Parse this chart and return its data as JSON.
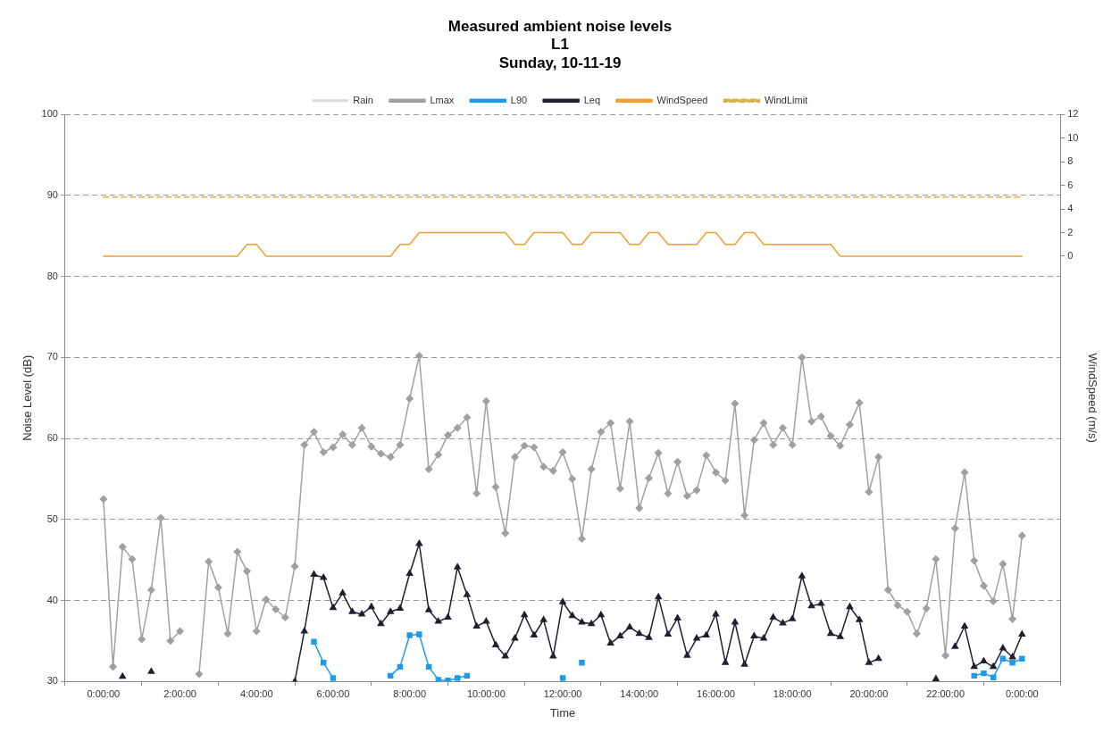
{
  "chart_data": {
    "type": "line",
    "title": "Measured ambient noise levels\nL1\nSunday, 10-11-19",
    "xlabel": "Time",
    "ylabel": "Noise Level (dB)",
    "y2label": "WindSpeed (m/s)",
    "x": [
      "--11-10T00:00",
      "--11-10T00:15",
      "--11-10T00:30",
      "--11-10T00:45",
      "--11-10T01:00",
      "--11-10T01:15",
      "--11-10T01:30",
      "--11-10T01:45",
      "--11-10T02:00",
      "--11-10T02:15",
      "--11-10T02:30",
      "--11-10T02:45",
      "--11-10T03:00",
      "--11-10T03:15",
      "--11-10T03:30",
      "--11-10T03:45",
      "--11-10T04:00",
      "--11-10T04:15",
      "--11-10T04:30",
      "--11-10T04:45",
      "--11-10T05:00",
      "--11-10T05:15",
      "--11-10T05:30",
      "--11-10T05:45",
      "--11-10T06:00",
      "--11-10T06:15",
      "--11-10T06:30",
      "--11-10T06:45",
      "--11-10T07:00",
      "--11-10T07:15",
      "--11-10T07:30",
      "--11-10T07:45",
      "--11-10T08:00",
      "--11-10T08:15",
      "--11-10T08:30",
      "--11-10T08:45",
      "--11-10T09:00",
      "--11-10T09:15",
      "--11-10T09:30",
      "--11-10T09:45",
      "--11-10T10:00",
      "--11-10T10:15",
      "--11-10T10:30",
      "--11-10T10:45",
      "--11-10T11:00",
      "--11-10T11:15",
      "--11-10T11:30",
      "--11-10T11:45",
      "--11-10T12:00",
      "--11-10T12:15",
      "--11-10T12:30",
      "--11-10T12:45",
      "--11-10T13:00",
      "--11-10T13:15",
      "--11-10T13:30",
      "--11-10T13:45",
      "--11-10T14:00",
      "--11-10T14:15",
      "--11-10T14:30",
      "--11-10T14:45",
      "--11-10T15:00",
      "--11-10T15:15",
      "--11-10T15:30",
      "--11-10T15:45",
      "--11-10T16:00",
      "--11-10T16:15",
      "--11-10T16:30",
      "--11-10T16:45",
      "--11-10T17:00",
      "--11-10T17:15",
      "--11-10T17:30",
      "--11-10T17:45",
      "--11-10T18:00",
      "--11-10T18:15",
      "--11-10T18:30",
      "--11-10T18:45",
      "--11-10T19:00",
      "--11-10T19:15",
      "--11-10T19:30",
      "--11-10T19:45",
      "--11-10T20:00",
      "--11-10T20:15",
      "--11-10T20:30",
      "--11-10T20:45",
      "--11-10T21:00",
      "--11-10T21:15",
      "--11-10T21:30",
      "--11-10T21:45",
      "--11-10T22:00",
      "--11-10T22:15",
      "--11-10T22:30",
      "--11-10T22:45",
      "--11-10T23:00",
      "--11-10T23:15",
      "--11-10T23:30",
      "--11-10T23:45",
      "--11-11T00:00"
    ],
    "xlim": [
      "--11-10T00:00",
      "--11-11T00:00"
    ],
    "xticks": [
      {
        "value": "--11-10T00:00",
        "label": "0:00:00"
      },
      {
        "value": "--11-10T02:00",
        "label": "2:00:00"
      },
      {
        "value": "--11-10T04:00",
        "label": "4:00:00"
      },
      {
        "value": "--11-10T06:00",
        "label": "6:00:00"
      },
      {
        "value": "--11-10T08:00",
        "label": "8:00:00"
      },
      {
        "value": "--11-10T10:00",
        "label": "10:00:00"
      },
      {
        "value": "--11-10T12:00",
        "label": "12:00:00"
      },
      {
        "value": "--11-10T14:00",
        "label": "14:00:00"
      },
      {
        "value": "--11-10T16:00",
        "label": "16:00:00"
      },
      {
        "value": "--11-10T18:00",
        "label": "18:00:00"
      },
      {
        "value": "--11-10T20:00",
        "label": "20:00:00"
      },
      {
        "value": "--11-10T22:00",
        "label": "22:00:00"
      },
      {
        "value": "--11-11T00:00",
        "label": "0:00:00"
      }
    ],
    "ylim": [
      30,
      100
    ],
    "yticks": [
      30,
      40,
      50,
      60,
      70,
      80,
      90,
      100
    ],
    "y2lim": [
      -36,
      12
    ],
    "y2ticks": [
      0,
      2,
      4,
      6,
      8,
      10,
      12
    ],
    "grid": "y",
    "legend": "top",
    "series": [
      {
        "name": "Rain",
        "type": "bar",
        "axis": "y2",
        "color": "#d9d9d9",
        "values": [
          null,
          null,
          null,
          null,
          null,
          null,
          null,
          null,
          null,
          null,
          null,
          null,
          null,
          null,
          null,
          null,
          null,
          null,
          null,
          null,
          null,
          null,
          null,
          null,
          null,
          null,
          null,
          null,
          null,
          null,
          null,
          null,
          null,
          null,
          null,
          null,
          null,
          null,
          null,
          null,
          null,
          null,
          null,
          null,
          null,
          null,
          null,
          null,
          null,
          null,
          null,
          null,
          null,
          null,
          null,
          null,
          null,
          null,
          null,
          null,
          null,
          null,
          null,
          null,
          null,
          null,
          null,
          null,
          null,
          null,
          null,
          null,
          null,
          null,
          null,
          null,
          null,
          null,
          null,
          null,
          null,
          null,
          null,
          null,
          null,
          null,
          null,
          null,
          null,
          null,
          null,
          null,
          null,
          null,
          null,
          null,
          null
        ]
      },
      {
        "name": "Lmax",
        "color": "#a0a0a0",
        "marker": "diamond",
        "values": [
          52.5,
          31.8,
          46.6,
          45.1,
          35.2,
          41.3,
          50.2,
          35.0,
          36.2,
          null,
          30.9,
          44.8,
          41.6,
          35.9,
          46.0,
          43.6,
          36.2,
          40.1,
          38.9,
          37.9,
          44.2,
          59.2,
          60.8,
          58.3,
          58.9,
          60.5,
          59.2,
          61.3,
          59.0,
          58.1,
          57.7,
          59.2,
          64.9,
          70.2,
          56.2,
          58.0,
          60.4,
          61.3,
          62.6,
          53.2,
          64.6,
          54.0,
          48.3,
          57.7,
          59.1,
          58.9,
          56.5,
          56.0,
          58.3,
          55.0,
          47.6,
          56.2,
          60.8,
          61.9,
          53.8,
          62.1,
          51.4,
          55.1,
          58.2,
          53.2,
          57.1,
          52.9,
          53.6,
          57.9,
          55.8,
          54.8,
          64.3,
          50.5,
          59.8,
          61.9,
          59.2,
          61.3,
          59.2,
          70.0,
          62.1,
          62.7,
          60.3,
          59.1,
          61.7,
          64.4,
          53.4,
          57.7,
          41.3,
          39.4,
          38.6,
          35.9,
          39.0,
          45.1,
          33.2,
          48.9,
          55.8,
          44.9,
          41.8,
          39.9,
          44.5,
          37.7,
          48.0
        ]
      },
      {
        "name": "L90",
        "color": "#1e9be9",
        "marker": "square",
        "values": [
          null,
          null,
          null,
          null,
          null,
          null,
          null,
          null,
          null,
          null,
          null,
          null,
          null,
          null,
          null,
          null,
          null,
          null,
          null,
          null,
          null,
          null,
          34.9,
          32.3,
          30.4,
          null,
          null,
          null,
          null,
          null,
          30.7,
          31.8,
          35.7,
          35.8,
          31.8,
          30.2,
          30.1,
          30.4,
          30.7,
          null,
          null,
          null,
          null,
          null,
          null,
          null,
          null,
          null,
          30.4,
          null,
          32.3,
          null,
          null,
          null,
          null,
          null,
          null,
          null,
          null,
          null,
          null,
          null,
          null,
          null,
          null,
          null,
          null,
          null,
          null,
          null,
          null,
          null,
          null,
          null,
          null,
          null,
          null,
          null,
          null,
          null,
          null,
          null,
          null,
          null,
          null,
          null,
          null,
          null,
          null,
          null,
          null,
          30.7,
          31.0,
          30.5,
          32.8,
          32.3,
          32.8
        ]
      },
      {
        "name": "Leq",
        "color": "#1f1f2e",
        "marker": "triangle",
        "values": [
          null,
          null,
          30.6,
          null,
          null,
          31.2,
          null,
          null,
          null,
          null,
          null,
          null,
          null,
          null,
          null,
          null,
          null,
          null,
          null,
          null,
          30.0,
          36.2,
          43.2,
          42.8,
          39.1,
          40.9,
          38.6,
          38.3,
          39.2,
          37.1,
          38.6,
          39.0,
          43.3,
          47.0,
          38.8,
          37.4,
          37.9,
          44.1,
          40.7,
          36.8,
          37.4,
          34.5,
          33.1,
          35.3,
          38.2,
          35.7,
          37.6,
          33.1,
          39.8,
          38.1,
          37.3,
          37.1,
          38.2,
          34.7,
          35.6,
          36.7,
          35.9,
          35.4,
          40.4,
          35.8,
          37.8,
          33.2,
          35.3,
          35.7,
          38.3,
          32.3,
          37.3,
          32.1,
          35.6,
          35.3,
          37.9,
          37.2,
          37.7,
          43.0,
          39.3,
          39.6,
          35.9,
          35.5,
          39.2,
          37.6,
          32.3,
          32.8,
          null,
          null,
          null,
          null,
          null,
          30.3,
          null,
          34.3,
          36.8,
          31.8,
          32.5,
          31.8,
          34.1,
          33.0,
          35.8
        ]
      },
      {
        "name": "WindSpeed",
        "color": "#f0a030",
        "axis": "y2",
        "values": [
          0,
          0,
          0,
          0,
          0,
          0,
          0,
          0,
          0,
          0,
          0,
          0,
          0,
          0,
          0,
          1,
          1,
          0,
          0,
          0,
          0,
          0,
          0,
          0,
          0,
          0,
          0,
          0,
          0,
          0,
          0,
          1,
          1,
          2,
          2,
          2,
          2,
          2,
          2,
          2,
          2,
          2,
          2,
          1,
          1,
          2,
          2,
          2,
          2,
          1,
          1,
          2,
          2,
          2,
          2,
          1,
          1,
          2,
          2,
          1,
          1,
          1,
          1,
          2,
          2,
          1,
          1,
          2,
          2,
          1,
          1,
          1,
          1,
          1,
          1,
          1,
          1,
          0,
          0,
          0,
          0,
          0,
          0,
          0,
          0,
          0,
          0,
          0,
          0,
          0,
          0,
          0,
          0,
          0,
          0,
          0,
          0
        ]
      },
      {
        "name": "WindLimit",
        "color": "#d4b44a",
        "axis": "y2",
        "line_style": "dashed",
        "x": [
          "--11-10T00:00",
          "--11-11T00:00"
        ],
        "values": [
          5,
          5
        ]
      }
    ]
  }
}
